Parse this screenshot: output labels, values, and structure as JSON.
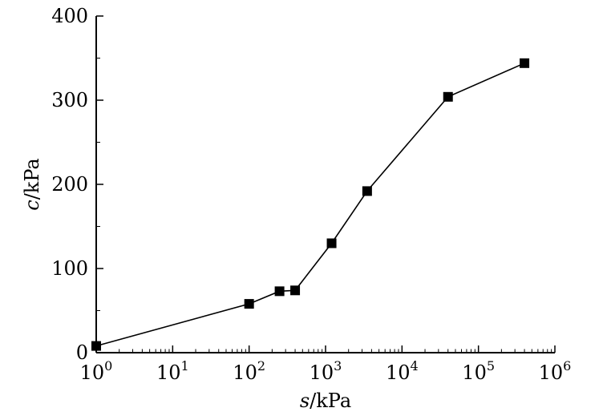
{
  "chart_data": {
    "type": "line",
    "xscale": "log",
    "x_exponent_range": [
      0,
      6
    ],
    "xticks": [
      {
        "base": "10",
        "exp": "0"
      },
      {
        "base": "10",
        "exp": "1"
      },
      {
        "base": "10",
        "exp": "2"
      },
      {
        "base": "10",
        "exp": "3"
      },
      {
        "base": "10",
        "exp": "4"
      },
      {
        "base": "10",
        "exp": "5"
      },
      {
        "base": "10",
        "exp": "6"
      }
    ],
    "ylim": [
      0,
      400
    ],
    "yticks": [
      "0",
      "100",
      "200",
      "300",
      "400"
    ],
    "grid": false,
    "xlabel": {
      "var": "s",
      "unit": "/kPa"
    },
    "ylabel": {
      "var": "c",
      "unit": "/kPa"
    },
    "marker": "square",
    "color": "#000000",
    "series": [
      {
        "x": [
          1,
          100,
          250,
          400,
          1200,
          3500,
          40000,
          400000
        ],
        "y": [
          8,
          58,
          73,
          74,
          130,
          192,
          304,
          344
        ]
      }
    ]
  }
}
